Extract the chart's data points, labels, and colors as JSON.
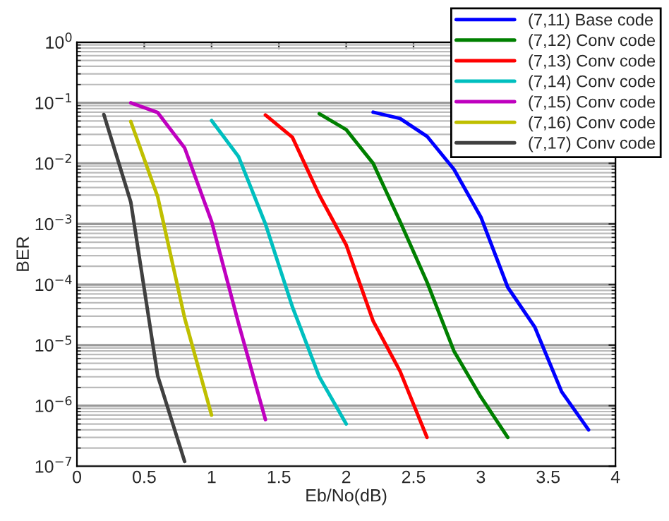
{
  "chart_data": {
    "type": "line",
    "xlabel": "Eb/No(dB)",
    "ylabel": "BER",
    "log": "y",
    "grid": "y",
    "legend": "top right",
    "line_style": "solid",
    "marker": "none",
    "xlim": [
      0,
      4
    ],
    "xticks": [
      0,
      0.5,
      1,
      1.5,
      2,
      2.5,
      3,
      3.5,
      4
    ],
    "ylim": [
      1e-07,
      1
    ],
    "yticks": [
      {
        "value": 1e-07,
        "label": "10$^{−7}$"
      },
      {
        "value": 1e-06,
        "label": "10$^{−6}$"
      },
      {
        "value": 1e-05,
        "label": "10$^{−5}$"
      },
      {
        "value": 0.0001,
        "label": "10$^{−4}$"
      },
      {
        "value": 0.001,
        "label": "10$^{−3}$"
      },
      {
        "value": 0.01,
        "label": "10$^{−2}$"
      },
      {
        "value": 0.1,
        "label": "10$^{−1}$"
      },
      {
        "value": 1,
        "label": "10$^{0}$"
      }
    ],
    "series": [
      {
        "name": "(7,11) Base code",
        "color": "#0000ff",
        "x": [
          2.2,
          2.4,
          2.6,
          2.8,
          3.0,
          3.2,
          3.4,
          3.6,
          3.8
        ],
        "values": [
          0.07,
          0.055,
          0.028,
          0.008,
          0.0013,
          9e-05,
          2e-05,
          1.7e-06,
          4e-07
        ]
      },
      {
        "name": "(7,12) Conv code",
        "color": "#008000",
        "x": [
          1.8,
          2.0,
          2.2,
          2.4,
          2.6,
          2.8,
          3.0,
          3.2
        ],
        "values": [
          0.066,
          0.036,
          0.01,
          0.0011,
          0.00011,
          8e-06,
          1.4e-06,
          3e-07
        ]
      },
      {
        "name": "(7,13) Conv code",
        "color": "#ff0000",
        "x": [
          1.4,
          1.6,
          1.8,
          2.0,
          2.2,
          2.4,
          2.6
        ],
        "values": [
          0.063,
          0.027,
          0.003,
          0.00045,
          2.5e-05,
          3.7e-06,
          3e-07
        ]
      },
      {
        "name": "(7,14) Conv code",
        "color": "#00bfbf",
        "x": [
          1.0,
          1.2,
          1.4,
          1.6,
          1.8,
          2.0
        ],
        "values": [
          0.051,
          0.013,
          0.001,
          4.3e-05,
          3e-06,
          5e-07
        ]
      },
      {
        "name": "(7,15) Conv code",
        "color": "#bf00bf",
        "x": [
          0.4,
          0.6,
          0.8,
          1.0,
          1.2,
          1.4
        ],
        "values": [
          0.1,
          0.069,
          0.018,
          0.0011,
          2.3e-05,
          5.9e-07
        ]
      },
      {
        "name": "(7,16) Conv code",
        "color": "#bfbf00",
        "x": [
          0.4,
          0.6,
          0.8,
          1.0
        ],
        "values": [
          0.049,
          0.0028,
          2.8e-05,
          7e-07
        ]
      },
      {
        "name": "(7,17) Conv code",
        "color": "#404040",
        "x": [
          0.2,
          0.4,
          0.6,
          0.8
        ],
        "values": [
          0.064,
          0.0023,
          3.1e-06,
          1.2e-07
        ]
      }
    ]
  }
}
